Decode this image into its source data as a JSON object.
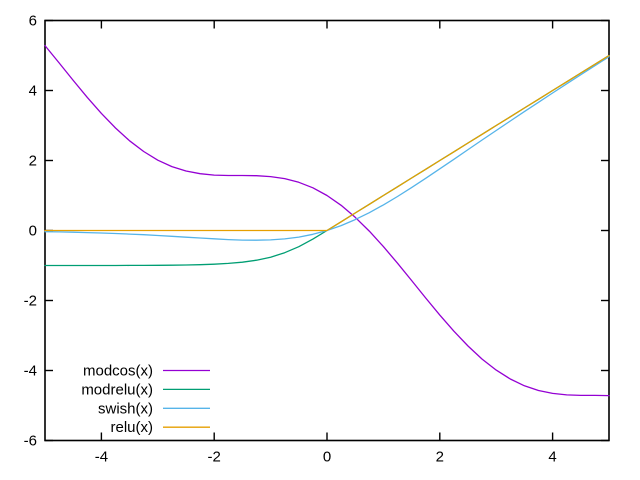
{
  "figure": {
    "background": "#ffffff",
    "border_color": "#000000",
    "text_color": "#000000"
  },
  "chart_data": {
    "type": "line",
    "title": "",
    "xlabel": "",
    "ylabel": "",
    "xlim": [
      -5,
      5
    ],
    "ylim": [
      -6,
      6
    ],
    "xticks": [
      -4,
      -2,
      0,
      2,
      4
    ],
    "yticks": [
      -6,
      -4,
      -2,
      0,
      2,
      4,
      6
    ],
    "grid": false,
    "tick_style": "inward-mirrored",
    "legend_position": "inside-bottom-left",
    "x": [
      -5,
      -4.75,
      -4.5,
      -4.25,
      -4,
      -3.75,
      -3.5,
      -3.25,
      -3,
      -2.75,
      -2.5,
      -2.25,
      -2,
      -1.75,
      -1.5,
      -1.25,
      -1,
      -0.75,
      -0.5,
      -0.25,
      0,
      0.25,
      0.5,
      0.75,
      1,
      1.25,
      1.5,
      1.75,
      2,
      2.25,
      2.5,
      2.75,
      3,
      3.25,
      3.5,
      3.75,
      4,
      4.25,
      4.5,
      4.75,
      5
    ],
    "series": [
      {
        "name": "modcos(x)",
        "color": "#9400d3",
        "values": [
          5.284,
          4.788,
          4.289,
          3.804,
          3.346,
          2.929,
          2.564,
          2.256,
          2.01,
          1.826,
          1.699,
          1.622,
          1.584,
          1.572,
          1.571,
          1.565,
          1.54,
          1.482,
          1.378,
          1.219,
          1.0,
          0.719,
          0.378,
          -0.018,
          -0.46,
          -0.935,
          -1.429,
          -1.928,
          -2.416,
          -2.878,
          -3.301,
          -3.674,
          -3.99,
          -4.244,
          -4.436,
          -4.571,
          -4.654,
          -4.696,
          -4.711,
          -4.712,
          -4.716
        ]
      },
      {
        "name": "modrelu(x)",
        "color": "#009e73",
        "values": [
          -1.0,
          -1.0,
          -1.0,
          -1.0,
          -0.999,
          -0.999,
          -0.998,
          -0.997,
          -0.995,
          -0.992,
          -0.987,
          -0.978,
          -0.964,
          -0.941,
          -0.905,
          -0.848,
          -0.762,
          -0.635,
          -0.462,
          -0.245,
          0,
          0.25,
          0.5,
          0.75,
          1,
          1.25,
          1.5,
          1.75,
          2,
          2.25,
          2.5,
          2.75,
          3,
          3.25,
          3.5,
          3.75,
          4,
          4.25,
          4.5,
          4.75,
          5
        ]
      },
      {
        "name": "swish(x)",
        "color": "#56b4e9",
        "values": [
          -0.033,
          -0.041,
          -0.049,
          -0.06,
          -0.072,
          -0.086,
          -0.103,
          -0.121,
          -0.142,
          -0.165,
          -0.19,
          -0.215,
          -0.238,
          -0.259,
          -0.274,
          -0.278,
          -0.269,
          -0.241,
          -0.189,
          -0.109,
          0,
          0.141,
          0.311,
          0.509,
          0.731,
          0.972,
          1.226,
          1.491,
          1.762,
          2.035,
          2.31,
          2.585,
          2.858,
          3.129,
          3.397,
          3.664,
          3.928,
          4.19,
          4.451,
          4.709,
          4.967
        ]
      },
      {
        "name": "relu(x)",
        "color": "#e69f00",
        "values": [
          0,
          0,
          0,
          0,
          0,
          0,
          0,
          0,
          0,
          0,
          0,
          0,
          0,
          0,
          0,
          0,
          0,
          0,
          0,
          0,
          0,
          0.25,
          0.5,
          0.75,
          1,
          1.25,
          1.5,
          1.75,
          2,
          2.25,
          2.5,
          2.75,
          3,
          3.25,
          3.5,
          3.75,
          4,
          4.25,
          4.5,
          4.75,
          5
        ]
      }
    ]
  }
}
